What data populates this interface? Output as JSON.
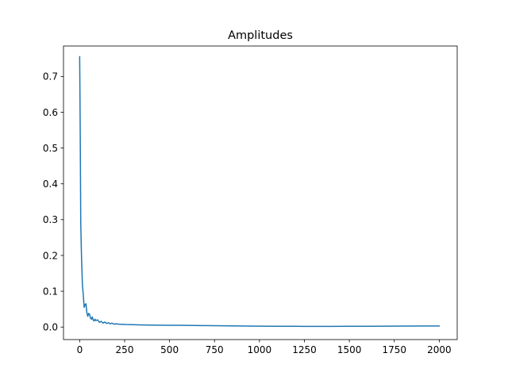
{
  "chart_data": {
    "type": "line",
    "title": "Amplitudes",
    "xlabel": "",
    "ylabel": "",
    "xlim": [
      -90,
      2100
    ],
    "ylim": [
      -0.035,
      0.785
    ],
    "xticks": [
      0,
      250,
      500,
      750,
      1000,
      1250,
      1500,
      1750,
      2000
    ],
    "xtick_labels": [
      "0",
      "250",
      "500",
      "750",
      "1000",
      "1250",
      "1500",
      "1750",
      "2000"
    ],
    "yticks": [
      0.0,
      0.1,
      0.2,
      0.3,
      0.4,
      0.5,
      0.6,
      0.7
    ],
    "ytick_labels": [
      "0.0",
      "0.1",
      "0.2",
      "0.3",
      "0.4",
      "0.5",
      "0.6",
      "0.7"
    ],
    "grid": false,
    "legend": "none",
    "series": [
      {
        "color": "#1f77b4",
        "x": [
          0,
          3,
          6,
          10,
          15,
          20,
          25,
          30,
          35,
          40,
          45,
          50,
          55,
          60,
          65,
          70,
          75,
          80,
          85,
          90,
          100,
          110,
          120,
          130,
          140,
          150,
          160,
          170,
          180,
          190,
          200,
          220,
          240,
          260,
          280,
          300,
          330,
          360,
          400,
          450,
          500,
          550,
          600,
          700,
          800,
          900,
          1000,
          1100,
          1200,
          1300,
          1400,
          1500,
          1600,
          1700,
          1800,
          1900,
          2000
        ],
        "values": [
          0.755,
          0.55,
          0.29,
          0.2,
          0.12,
          0.09,
          0.055,
          0.062,
          0.065,
          0.04,
          0.03,
          0.038,
          0.036,
          0.025,
          0.022,
          0.028,
          0.02,
          0.017,
          0.022,
          0.018,
          0.02,
          0.013,
          0.016,
          0.011,
          0.014,
          0.01,
          0.012,
          0.009,
          0.011,
          0.008,
          0.009,
          0.008,
          0.0075,
          0.007,
          0.0068,
          0.0065,
          0.006,
          0.0058,
          0.0055,
          0.0052,
          0.005,
          0.0048,
          0.0045,
          0.004,
          0.0035,
          0.003,
          0.0025,
          0.0022,
          0.002,
          0.0018,
          0.0018,
          0.002,
          0.0022,
          0.0025,
          0.0028,
          0.003,
          0.003
        ]
      }
    ]
  }
}
